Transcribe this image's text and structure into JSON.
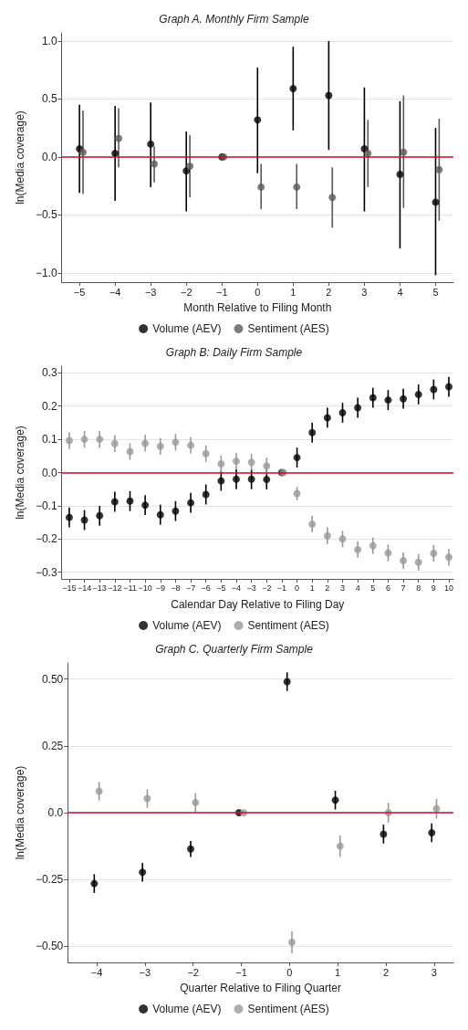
{
  "chart_data": [
    {
      "type": "scatter",
      "title": "Graph A. Monthly Firm Sample",
      "xlabel": "Month Relative to Filing Month",
      "ylabel": "ln(Media coverage)",
      "xlim": [
        -5.5,
        5.5
      ],
      "xticks": [
        {
          "value": -5,
          "label": "−5"
        },
        {
          "value": -4,
          "label": "−4"
        },
        {
          "value": -3,
          "label": "−3"
        },
        {
          "value": -2,
          "label": "−2"
        },
        {
          "value": -1,
          "label": "−1"
        },
        0,
        1,
        2,
        3,
        4,
        5
      ],
      "ylim": [
        -1.08,
        1.07
      ],
      "yticks": [
        {
          "value": -1,
          "label": "−1.0"
        },
        {
          "value": -0.5,
          "label": "−0.5"
        },
        {
          "value": 0,
          "label": "0.0"
        },
        0.5,
        {
          "value": 1,
          "label": "1.0"
        }
      ],
      "grid": "y",
      "legend": "bottom",
      "marker": "circle",
      "ref_lines": [
        {
          "axis": "y",
          "value": 0,
          "color": "#c8102e"
        }
      ],
      "series": [
        {
          "name": "Volume (AEV)",
          "color": "#000000",
          "x": [
            -5,
            -4,
            -3,
            -2,
            -1,
            0,
            1,
            2,
            3,
            4,
            5
          ],
          "values": [
            0.07,
            0.03,
            0.11,
            -0.12,
            0,
            0.32,
            0.59,
            0.53,
            0.07,
            -0.15,
            -0.39
          ],
          "errors": [
            [
              -0.31,
              0.45
            ],
            [
              -0.38,
              0.44
            ],
            [
              -0.26,
              0.47
            ],
            [
              -0.47,
              0.22
            ],
            null,
            [
              -0.14,
              0.77
            ],
            [
              0.23,
              0.95
            ],
            [
              0.06,
              1.0
            ],
            [
              -0.47,
              0.6
            ],
            [
              -0.79,
              0.48
            ],
            [
              -1.02,
              0.25
            ]
          ]
        },
        {
          "name": "Sentiment (AES)",
          "color": "#5a5a5a",
          "x": [
            -4.9,
            -3.9,
            -2.9,
            -1.9,
            -0.95,
            0.1,
            1.1,
            2.1,
            3.1,
            4.1,
            5.1
          ],
          "values": [
            0.04,
            0.16,
            -0.06,
            -0.08,
            0,
            -0.26,
            -0.26,
            -0.35,
            0.03,
            0.04,
            -0.11
          ],
          "errors": [
            [
              -0.32,
              0.4
            ],
            [
              -0.09,
              0.42
            ],
            [
              -0.22,
              0.09
            ],
            [
              -0.35,
              0.19
            ],
            null,
            [
              -0.45,
              -0.06
            ],
            [
              -0.45,
              -0.06
            ],
            [
              -0.61,
              -0.09
            ],
            [
              -0.26,
              0.32
            ],
            [
              -0.44,
              0.53
            ],
            [
              -0.55,
              0.33
            ]
          ]
        }
      ]
    },
    {
      "type": "scatter",
      "title": "Graph B: Daily Firm Sample",
      "xlabel": "Calendar Day Relative to Filing Day",
      "ylabel": "ln(Media coverage)",
      "xlim": [
        -15.5,
        10.3
      ],
      "xticks": [
        {
          "value": -15,
          "label": "−15"
        },
        {
          "value": -14,
          "label": "−14"
        },
        {
          "value": -13,
          "label": "−13"
        },
        {
          "value": -12,
          "label": "−12"
        },
        {
          "value": -11,
          "label": "−11"
        },
        {
          "value": -10,
          "label": "−10"
        },
        {
          "value": -9,
          "label": "−9"
        },
        {
          "value": -8,
          "label": "−8"
        },
        {
          "value": -7,
          "label": "−7"
        },
        {
          "value": -6,
          "label": "−6"
        },
        {
          "value": -5,
          "label": "−5"
        },
        {
          "value": -4,
          "label": "−4"
        },
        {
          "value": -3,
          "label": "−3"
        },
        {
          "value": -2,
          "label": "−2"
        },
        {
          "value": -1,
          "label": "−1"
        },
        0,
        1,
        2,
        3,
        4,
        5,
        6,
        7,
        8,
        9,
        10
      ],
      "ylim": [
        -0.32,
        0.32
      ],
      "yticks": [
        {
          "value": -0.3,
          "label": "−0.3"
        },
        {
          "value": -0.2,
          "label": "−0.2"
        },
        {
          "value": -0.1,
          "label": "−0.1"
        },
        {
          "value": 0,
          "label": "0.0"
        },
        0.1,
        0.2,
        0.3
      ],
      "grid": "y",
      "legend": "bottom",
      "marker": "circle",
      "ref_lines": [
        {
          "axis": "y",
          "value": 0,
          "color": "#c8102e"
        }
      ],
      "series": [
        {
          "name": "Volume (AEV)",
          "color": "#000000",
          "x": [
            -15,
            -14,
            -13,
            -12,
            -11,
            -10,
            -9,
            -8,
            -7,
            -6,
            -5,
            -4,
            -3,
            -2,
            -1,
            0,
            1,
            2,
            3,
            4,
            5,
            6,
            7,
            8,
            9,
            10
          ],
          "values": [
            -0.135,
            -0.143,
            -0.13,
            -0.088,
            -0.086,
            -0.098,
            -0.127,
            -0.116,
            -0.091,
            -0.066,
            -0.025,
            -0.02,
            -0.02,
            -0.021,
            0,
            0.045,
            0.12,
            0.165,
            0.18,
            0.195,
            0.225,
            0.218,
            0.222,
            0.235,
            0.25,
            0.258
          ],
          "errors": [
            0.03,
            0.03,
            0.03,
            0.03,
            0.03,
            0.03,
            0.03,
            0.03,
            0.03,
            0.03,
            0.03,
            0.03,
            0.03,
            0.03,
            null,
            0.03,
            0.03,
            0.03,
            0.03,
            0.03,
            0.03,
            0.03,
            0.03,
            0.03,
            0.03,
            0.03
          ]
        },
        {
          "name": "Sentiment (AES)",
          "color": "#999999",
          "x": [
            -15,
            -14,
            -13,
            -12,
            -11,
            -10,
            -9,
            -8,
            -7,
            -6,
            -5,
            -4,
            -3,
            -2,
            -0.9,
            0,
            1,
            2,
            3,
            4,
            5,
            6,
            7,
            8,
            9,
            10
          ],
          "values": [
            0.096,
            0.1,
            0.1,
            0.087,
            0.063,
            0.088,
            0.079,
            0.091,
            0.082,
            0.057,
            0.026,
            0.034,
            0.031,
            0.02,
            0,
            -0.063,
            -0.155,
            -0.19,
            -0.2,
            -0.232,
            -0.22,
            -0.242,
            -0.265,
            -0.27,
            -0.243,
            -0.255
          ],
          "errors": [
            0.025,
            0.025,
            0.025,
            0.025,
            0.025,
            0.025,
            0.025,
            0.025,
            0.025,
            0.025,
            0.025,
            0.025,
            0.025,
            0.025,
            null,
            0.02,
            0.025,
            0.025,
            0.025,
            0.025,
            0.025,
            0.025,
            0.025,
            0.025,
            0.025,
            0.025
          ]
        }
      ]
    },
    {
      "type": "scatter",
      "title": "Graph C. Quarterly Firm Sample",
      "xlabel": "Quarter Relative to Filing Quarter",
      "ylabel": "ln(Media coverage)",
      "xlim": [
        -4.6,
        3.4
      ],
      "xticks": [
        {
          "value": -4,
          "label": "−4"
        },
        {
          "value": -3,
          "label": "−3"
        },
        {
          "value": -2,
          "label": "−2"
        },
        {
          "value": -1,
          "label": "−1"
        },
        0,
        1,
        2,
        3
      ],
      "ylim": [
        -0.56,
        0.56
      ],
      "yticks": [
        {
          "value": -0.5,
          "label": "−0.50"
        },
        {
          "value": -0.25,
          "label": "−0.25"
        },
        {
          "value": 0,
          "label": "0.0"
        },
        0.25,
        {
          "value": 0.5,
          "label": "0.50"
        }
      ],
      "grid": "y",
      "legend": "bottom",
      "marker": "circle",
      "ref_lines": [
        {
          "axis": "y",
          "value": 0,
          "color": "#c8102e"
        }
      ],
      "series": [
        {
          "name": "Volume (AEV)",
          "color": "#000000",
          "x": [
            -4.05,
            -3.05,
            -2.05,
            -1.05,
            -0.05,
            0.95,
            1.95,
            2.95
          ],
          "values": [
            -0.265,
            -0.223,
            -0.136,
            0,
            0.49,
            0.047,
            -0.08,
            -0.075
          ],
          "errors": [
            0.035,
            0.035,
            0.03,
            null,
            0.035,
            0.035,
            0.035,
            0.035
          ]
        },
        {
          "name": "Sentiment (AES)",
          "color": "#999999",
          "x": [
            -3.95,
            -2.95,
            -1.95,
            -0.95,
            0.05,
            1.05,
            2.05,
            3.05
          ],
          "values": [
            0.08,
            0.053,
            0.038,
            0,
            -0.485,
            -0.125,
            0,
            0.015
          ],
          "errors": [
            0.035,
            0.035,
            0.035,
            null,
            0.04,
            0.04,
            0.037,
            0.037
          ]
        }
      ]
    }
  ]
}
